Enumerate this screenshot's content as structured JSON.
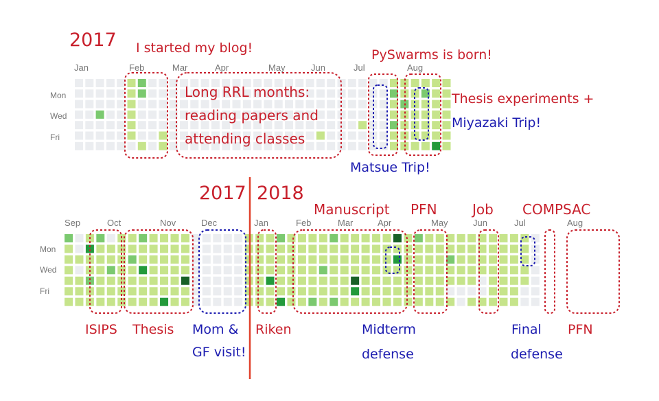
{
  "colors": {
    "red": "#c8202c",
    "blue": "#1c1cb0",
    "divider": "#e0412b",
    "levels": [
      "#ebedf0",
      "#c6e48b",
      "#7bc96f",
      "#239a3b",
      "#196127"
    ]
  },
  "chart_data": [
    {
      "type": "heatmap",
      "title": "2017",
      "row_labels": [
        "Mon",
        "Wed",
        "Fri"
      ],
      "months": [
        "Jan",
        "Feb",
        "Mar",
        "Apr",
        "May",
        "Jun",
        "Jul",
        "Aug"
      ],
      "weeks": [
        [
          0,
          0,
          0,
          0,
          0,
          0,
          0
        ],
        [
          0,
          0,
          0,
          0,
          0,
          0,
          0
        ],
        [
          0,
          0,
          0,
          2,
          0,
          0,
          0
        ],
        [
          0,
          0,
          0,
          0,
          0,
          0,
          0
        ],
        [
          0,
          0,
          0,
          0,
          0,
          0,
          0
        ],
        [
          1,
          1,
          1,
          1,
          1,
          1,
          0
        ],
        [
          2,
          2,
          0,
          0,
          0,
          0,
          1
        ],
        [
          0,
          0,
          0,
          0,
          0,
          0,
          0
        ],
        [
          0,
          0,
          0,
          0,
          0,
          1,
          1
        ],
        [
          0,
          0,
          0,
          0,
          0,
          0,
          0
        ],
        [
          0,
          0,
          0,
          0,
          0,
          0,
          0
        ],
        [
          0,
          0,
          0,
          0,
          0,
          0,
          0
        ],
        [
          0,
          0,
          0,
          0,
          0,
          0,
          0
        ],
        [
          0,
          0,
          0,
          0,
          0,
          0,
          0
        ],
        [
          0,
          0,
          0,
          0,
          0,
          0,
          0
        ],
        [
          0,
          0,
          0,
          0,
          0,
          0,
          0
        ],
        [
          0,
          0,
          0,
          0,
          0,
          0,
          0
        ],
        [
          0,
          0,
          0,
          0,
          0,
          0,
          0
        ],
        [
          0,
          0,
          0,
          0,
          0,
          0,
          0
        ],
        [
          0,
          0,
          0,
          0,
          0,
          0,
          0
        ],
        [
          0,
          0,
          0,
          0,
          0,
          0,
          0
        ],
        [
          0,
          0,
          0,
          0,
          0,
          0,
          0
        ],
        [
          0,
          0,
          0,
          0,
          0,
          0,
          0
        ],
        [
          0,
          0,
          0,
          0,
          0,
          1,
          0
        ],
        [
          0,
          0,
          0,
          0,
          0,
          0,
          0
        ],
        [
          0,
          0,
          0,
          0,
          0,
          0,
          0
        ],
        [
          0,
          0,
          0,
          0,
          0,
          0,
          0
        ],
        [
          0,
          0,
          0,
          0,
          1,
          0,
          0
        ],
        [
          0,
          0,
          0,
          0,
          0,
          0,
          0
        ],
        [
          0,
          0,
          0,
          0,
          0,
          0,
          0
        ],
        [
          1,
          2,
          1,
          1,
          2,
          1,
          1
        ],
        [
          1,
          1,
          2,
          1,
          1,
          1,
          1
        ],
        [
          1,
          1,
          1,
          1,
          1,
          1,
          1
        ],
        [
          1,
          2,
          1,
          1,
          1,
          1,
          1
        ],
        [
          1,
          1,
          1,
          1,
          1,
          1,
          3
        ],
        [
          1,
          1,
          1,
          1,
          1,
          1,
          1
        ]
      ]
    },
    {
      "type": "heatmap",
      "title": "2017 | 2018",
      "year_left": "2017",
      "year_right": "2018",
      "row_labels": [
        "Mon",
        "Wed",
        "Fri"
      ],
      "months": [
        "Sep",
        "Oct",
        "Nov",
        "Dec",
        "Jan",
        "Feb",
        "Mar",
        "Apr",
        "May",
        "Jun",
        "Jul",
        "Aug"
      ],
      "weeks": [
        [
          2,
          1,
          1,
          1,
          1,
          1,
          1
        ],
        [
          0,
          0,
          1,
          0,
          1,
          1,
          1
        ],
        [
          1,
          3,
          1,
          1,
          2,
          1,
          1
        ],
        [
          2,
          1,
          1,
          1,
          1,
          1,
          1
        ],
        [
          0,
          1,
          1,
          2,
          1,
          1,
          1
        ],
        [
          1,
          1,
          1,
          1,
          1,
          1,
          1
        ],
        [
          1,
          1,
          2,
          1,
          1,
          1,
          1
        ],
        [
          2,
          1,
          1,
          3,
          1,
          1,
          1
        ],
        [
          1,
          1,
          1,
          1,
          1,
          1,
          1
        ],
        [
          1,
          1,
          1,
          1,
          1,
          1,
          3
        ],
        [
          1,
          1,
          1,
          1,
          1,
          1,
          1
        ],
        [
          1,
          1,
          1,
          1,
          4,
          1,
          1
        ],
        [
          0,
          0,
          0,
          0,
          0,
          0,
          0
        ],
        [
          0,
          0,
          0,
          0,
          0,
          0,
          0
        ],
        [
          0,
          0,
          0,
          0,
          0,
          0,
          0
        ],
        [
          0,
          0,
          0,
          0,
          0,
          0,
          0
        ],
        [
          0,
          0,
          0,
          0,
          0,
          0,
          0
        ],
        [
          1,
          1,
          1,
          1,
          1,
          1,
          1
        ],
        [
          1,
          1,
          1,
          1,
          1,
          1,
          1
        ],
        [
          1,
          1,
          1,
          1,
          3,
          1,
          1
        ],
        [
          2,
          1,
          1,
          1,
          1,
          1,
          3
        ],
        [
          1,
          1,
          1,
          1,
          1,
          1,
          1
        ],
        [
          1,
          1,
          1,
          1,
          1,
          1,
          1
        ],
        [
          1,
          1,
          1,
          1,
          1,
          1,
          2
        ],
        [
          1,
          1,
          1,
          2,
          1,
          1,
          1
        ],
        [
          2,
          1,
          1,
          1,
          1,
          1,
          2
        ],
        [
          1,
          1,
          1,
          1,
          1,
          1,
          1
        ],
        [
          1,
          1,
          1,
          1,
          4,
          3,
          1
        ],
        [
          1,
          1,
          1,
          1,
          1,
          1,
          1
        ],
        [
          1,
          1,
          1,
          1,
          1,
          1,
          1
        ],
        [
          1,
          1,
          1,
          1,
          1,
          1,
          1
        ],
        [
          4,
          1,
          3,
          1,
          1,
          1,
          1
        ],
        [
          1,
          1,
          1,
          1,
          1,
          1,
          1
        ],
        [
          2,
          1,
          1,
          1,
          1,
          1,
          1
        ],
        [
          1,
          1,
          1,
          1,
          1,
          1,
          1
        ],
        [
          1,
          1,
          1,
          1,
          1,
          1,
          1
        ],
        [
          1,
          1,
          2,
          1,
          1,
          0,
          1
        ],
        [
          1,
          1,
          1,
          1,
          1,
          0,
          0
        ],
        [
          1,
          1,
          1,
          1,
          1,
          0,
          1
        ],
        [
          1,
          1,
          1,
          1,
          0,
          0,
          1
        ],
        [
          1,
          1,
          1,
          1,
          1,
          1,
          1
        ],
        [
          1,
          1,
          1,
          1,
          1,
          1,
          1
        ],
        [
          1,
          1,
          1,
          1,
          1,
          1,
          1
        ],
        [
          1,
          1,
          1,
          1,
          1,
          0,
          0
        ],
        [
          0,
          0,
          0,
          0,
          0,
          0,
          0
        ]
      ]
    }
  ],
  "annotations": {
    "blog": "I started my blog!",
    "pyswarms": "PySwarms is born!",
    "rrl_1": "Long RRL months:",
    "rrl_2": "reading papers and",
    "rrl_3": "attending classes",
    "thesis_exp": "Thesis experiments +",
    "miyazaki": "Miyazaki Trip!",
    "matsue": "Matsue Trip!",
    "manuscript": "Manuscript",
    "pfn_top": "PFN",
    "job": "Job",
    "compsac": "COMPSAC",
    "isips": "ISIPS",
    "thesis": "Thesis",
    "mom_1": "Mom &",
    "mom_2": "GF visit!",
    "riken": "Riken",
    "midterm_1": "Midterm",
    "midterm_2": "defense",
    "final_1": "Final",
    "final_2": "defense",
    "pfn_bottom": "PFN"
  }
}
